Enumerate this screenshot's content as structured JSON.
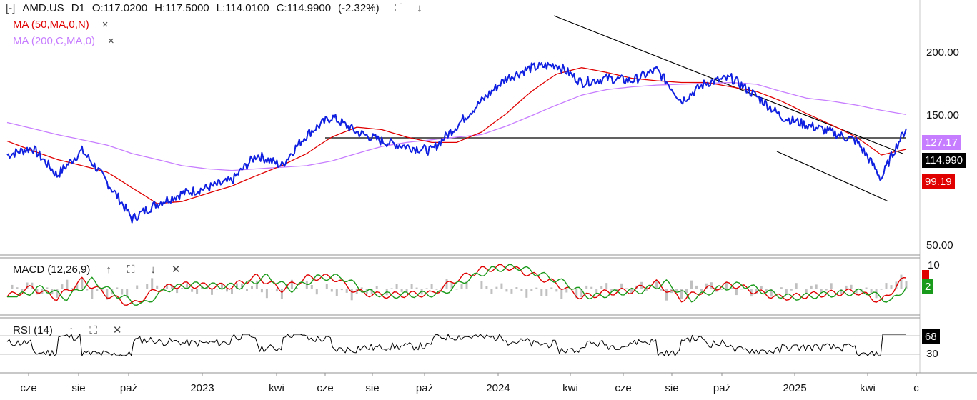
{
  "header": {
    "collapse_glyph": "[-]",
    "symbol": "AMD.US",
    "timeframe": "D1",
    "open": "O:117.0200",
    "high": "H:117.5000",
    "low": "L:114.0100",
    "close": "C:114.9900",
    "change": "(-2.32%)",
    "expand_icon": "expand-icon",
    "down_icon": "arrow-down-icon"
  },
  "indicators": {
    "ma50_label": "MA (50,MA,0,N)",
    "ma200_label": "MA (200,C,MA,0)",
    "remove_glyph": "×"
  },
  "price_badges": {
    "ma200_value": "127.17",
    "last_price": "114.990",
    "ma50_value": "99.19",
    "partial_tick": "0"
  },
  "macd": {
    "label": "MACD (12,26,9)",
    "badge_macd": "",
    "badge_signal": "2"
  },
  "rsi": {
    "label": "RSI (14)",
    "badge_value": "68"
  },
  "colors": {
    "price": "#1020e0",
    "ma50": "#e00000",
    "ma200": "#c77dff",
    "macd_line": "#e00000",
    "signal_line": "#1a9a1a",
    "histogram": "#c0c0c0",
    "rsi_line": "#000000"
  },
  "chart_data": {
    "type": "line",
    "price_axis_ticks": [
      "200.00",
      "150.00",
      "50.00"
    ],
    "macd_axis_ticks": [
      "10"
    ],
    "rsi_axis_ticks": [
      "30"
    ],
    "x_tick_labels": [
      "cze",
      "sie",
      "paź",
      "2023",
      "kwi",
      "cze",
      "sie",
      "paź",
      "2024",
      "kwi",
      "cze",
      "sie",
      "paź",
      "2025",
      "kwi",
      "c"
    ],
    "ylim": [
      40,
      240
    ],
    "series": [
      {
        "x": [
          "2022-05",
          "2022-06",
          "2022-07",
          "2022-08",
          "2022-09",
          "2022-10",
          "2022-11",
          "2022-12",
          "2023-01",
          "2023-02",
          "2023-03",
          "2023-04",
          "2023-05",
          "2023-06",
          "2023-07",
          "2023-08",
          "2023-09",
          "2023-10",
          "2023-11",
          "2023-12",
          "2024-01",
          "2024-02",
          "2024-03",
          "2024-04",
          "2024-05",
          "2024-06",
          "2024-07",
          "2024-08",
          "2024-09",
          "2024-10",
          "2024-11",
          "2024-12",
          "2025-01",
          "2025-02",
          "2025-03",
          "2025-04",
          "2025-05"
        ],
        "values": [
          95,
          100,
          82,
          98,
          78,
          60,
          67,
          72,
          75,
          79,
          95,
          88,
          110,
          125,
          112,
          105,
          101,
          98,
          117,
          140,
          165,
          178,
          182,
          160,
          165,
          162,
          175,
          140,
          160,
          165,
          145,
          125,
          118,
          112,
          105,
          80,
          115
        ]
      },
      {
        "name": "MA (50,MA,0,N)",
        "values": [
          105,
          98,
          92,
          88,
          84,
          75,
          67,
          68,
          72,
          76,
          82,
          88,
          96,
          108,
          116,
          114,
          108,
          104,
          104,
          112,
          128,
          150,
          170,
          178,
          172,
          165,
          162,
          160,
          160,
          155,
          150,
          140,
          128,
          118,
          108,
          95,
          99
        ]
      },
      {
        "name": "MA (200,C,MA,0)",
        "values": [
          120,
          115,
          110,
          106,
          102,
          96,
          92,
          88,
          86,
          85,
          86,
          87,
          88,
          91,
          96,
          101,
          104,
          106,
          108,
          110,
          117,
          126,
          136,
          146,
          152,
          155,
          157,
          158,
          159,
          160,
          158,
          150,
          143,
          140,
          136,
          131,
          127
        ]
      }
    ],
    "annotations": [
      "downtrend line from 2024 high",
      "horizontal level near 133",
      "descending channel line 2025"
    ]
  }
}
